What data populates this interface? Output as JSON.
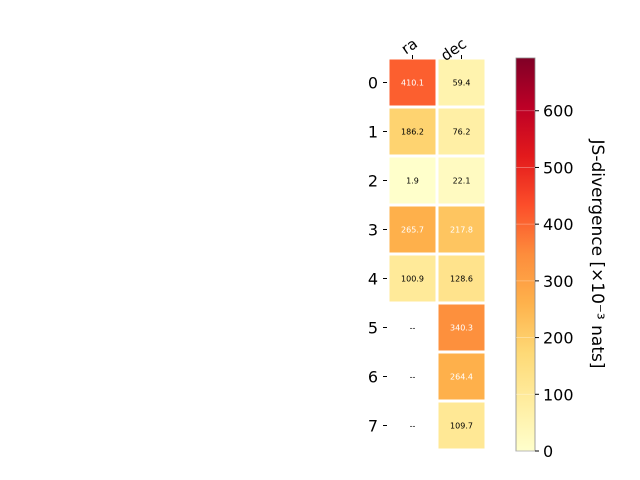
{
  "chart_data": {
    "type": "heatmap",
    "columns": [
      "ra",
      "dec"
    ],
    "rows": [
      "0",
      "1",
      "2",
      "3",
      "4",
      "5",
      "6",
      "7"
    ],
    "values": [
      [
        410.1,
        59.4
      ],
      [
        186.2,
        76.2
      ],
      [
        1.9,
        22.1
      ],
      [
        265.7,
        217.8
      ],
      [
        100.9,
        128.6
      ],
      [
        null,
        340.3
      ],
      [
        null,
        264.4
      ],
      [
        null,
        109.7
      ]
    ],
    "missing_label": "--",
    "colorbar": {
      "label": "JS-divergence [×10⁻³ nats]",
      "range": [
        0,
        693
      ],
      "ticks": [
        "0",
        "100",
        "200",
        "300",
        "400",
        "500",
        "600"
      ],
      "tick_values": [
        0,
        100,
        200,
        300,
        400,
        500,
        600
      ],
      "colormap": "YlOrRd"
    },
    "grid": false
  }
}
